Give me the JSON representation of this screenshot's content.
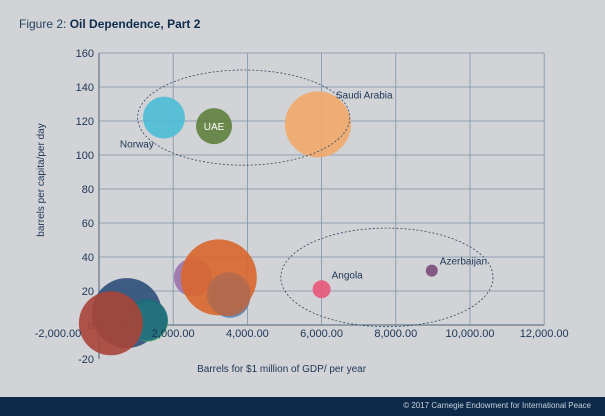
{
  "title": {
    "prefix": "Figure 2:",
    "main": "Oil Dependence, Part 2"
  },
  "footer": "© 2017 Carnegie Endowment for International Peace",
  "chart_data": {
    "type": "scatter",
    "subtype": "bubble",
    "title": "Figure 2: Oil Dependence, Part 2",
    "xlabel": "Barrels for $1 million of GDP/ per year",
    "ylabel": "barrels per capita/per day",
    "xlim": [
      -2000,
      12000
    ],
    "ylim": [
      -20,
      160
    ],
    "xticks": [
      "-2,000.00",
      "2,000.00",
      "4,000.00",
      "6,000.00",
      "8,000.00",
      "10,000.00",
      "12,000.00"
    ],
    "xtick_values": [
      -2000,
      2000,
      4000,
      6000,
      8000,
      10000,
      12000
    ],
    "yticks": [
      "-20",
      "0",
      "20",
      "40",
      "60",
      "80",
      "100",
      "120",
      "140",
      "160"
    ],
    "ytick_values": [
      -20,
      0,
      20,
      40,
      60,
      80,
      100,
      120,
      140,
      160
    ],
    "grid": true,
    "bubbles": [
      {
        "label": "",
        "x": 750,
        "y": 7,
        "size": 35,
        "color": "#2e4f7a"
      },
      {
        "label": "",
        "x": 1320,
        "y": 2,
        "size": 20,
        "color": "#5cb26e"
      },
      {
        "label": "",
        "x": 1290,
        "y": 3,
        "size": 21,
        "color": "#1c6a7c"
      },
      {
        "label": "",
        "x": 320,
        "y": 1,
        "size": 32,
        "color": "#a84438"
      },
      {
        "label": "",
        "x": 2530,
        "y": 28,
        "size": 19,
        "color": "#9b72ad"
      },
      {
        "label": "",
        "x": 3530,
        "y": 16,
        "size": 20,
        "color": "#4f86c6"
      },
      {
        "label": "",
        "x": 3230,
        "y": 28,
        "size": 38,
        "color": "#d9662e"
      },
      {
        "label": "",
        "x": 3500,
        "y": 18,
        "size": 22,
        "color": "#b06a4e"
      },
      {
        "label": "Norway",
        "x": 1750,
        "y": 122,
        "size": 21,
        "color": "#4bbcd6"
      },
      {
        "label": "UAE",
        "x": 3100,
        "y": 117,
        "size": 18,
        "color": "#5f7f3e"
      },
      {
        "label": "Saudi Arabia",
        "x": 5900,
        "y": 118,
        "size": 33,
        "color": "#f2a86c"
      },
      {
        "label": "Angola",
        "x": 6000,
        "y": 21,
        "size": 9,
        "color": "#e8577a"
      },
      {
        "label": "Azerbaijan",
        "x": 8970,
        "y": 32,
        "size": 6,
        "color": "#7a4a7a"
      }
    ],
    "annotations": [
      {
        "type": "ellipse",
        "cx": 3900,
        "cy": 122,
        "rx": 2860,
        "ry": 28
      },
      {
        "type": "ellipse",
        "cx": 7760,
        "cy": 28,
        "rx": 2860,
        "ry": 29
      }
    ]
  }
}
